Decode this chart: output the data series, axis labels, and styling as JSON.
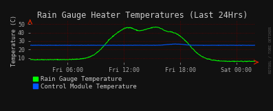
{
  "title": "Rain Gauge Heater Temperatures (Last 24Hrs)",
  "ylabel": "Temperature (C)",
  "background_color": "#111111",
  "plot_bg_color": "#111111",
  "grid_color": "#660000",
  "title_color": "#cccccc",
  "label_color": "#cccccc",
  "tick_color": "#aaaaaa",
  "green_color": "#00ff00",
  "blue_color": "#0055ff",
  "red_color": "#cc2200",
  "ylim": [
    5,
    55
  ],
  "yticks": [
    10,
    20,
    30,
    40,
    50
  ],
  "xtick_positions": [
    4,
    10,
    16,
    22
  ],
  "xtick_labels": [
    "Fri 06:00",
    "Fri 12:00",
    "Fri 18:00",
    "Sat 00:00"
  ],
  "legend_labels": [
    "Rain Gauge Temperature",
    "Control Module Temperature"
  ],
  "watermark": "RDTOOL / TOBI OETIKER",
  "title_fontsize": 8.5,
  "axis_fontsize": 6,
  "legend_fontsize": 6.5
}
